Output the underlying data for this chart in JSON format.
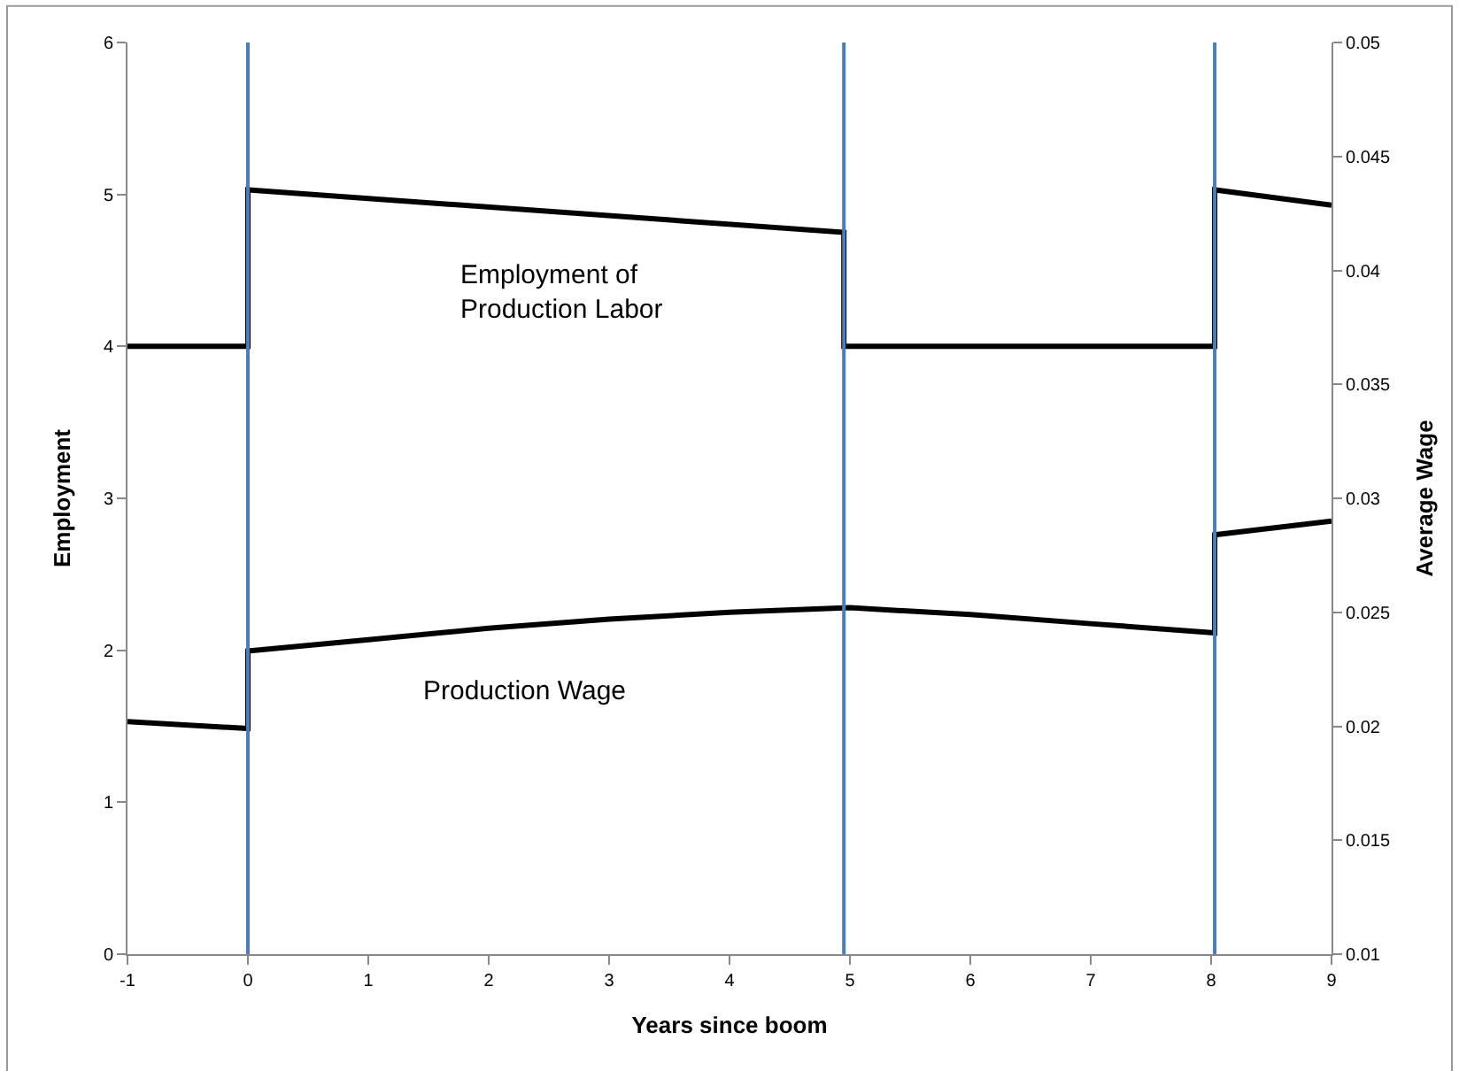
{
  "chart_data": {
    "type": "line",
    "xlabel": "Years since boom",
    "ylabel": "Employment",
    "y2label": "Average Wage",
    "xlim": [
      -1,
      9
    ],
    "xticks": [
      -1,
      0,
      1,
      2,
      3,
      4,
      5,
      6,
      7,
      8,
      9
    ],
    "ylim": [
      0,
      6
    ],
    "yticks": [
      0,
      1,
      2,
      3,
      4,
      5,
      6
    ],
    "y2lim": [
      0.01,
      0.05
    ],
    "y2ticks": [
      0.01,
      0.015,
      0.02,
      0.025,
      0.03,
      0.035,
      0.04,
      0.045,
      0.05
    ],
    "legend": false,
    "marker": "none",
    "line_style": "solid",
    "series": [
      {
        "name": "Employment of Production Labor",
        "color": "#000000",
        "x": [
          -1,
          0,
          0,
          4.95,
          4.95,
          8.03,
          8.03,
          9
        ],
        "values": [
          4,
          4,
          5.03,
          4.75,
          4,
          4,
          5.03,
          4.93
        ]
      },
      {
        "name": "Production Wage",
        "color": "#000000",
        "axis": "y2",
        "x": [
          -1,
          0,
          0,
          1,
          2,
          3,
          4,
          5,
          6,
          7,
          8.03,
          8.03,
          9
        ],
        "values": [
          0.0202,
          0.0199,
          0.0233,
          0.0238,
          0.0243,
          0.0247,
          0.025,
          0.0252,
          0.0249,
          0.0245,
          0.0241,
          0.0284,
          0.029
        ]
      }
    ],
    "ref_lines": [
      {
        "axis": "x",
        "value": 0,
        "color": "#4a7ebb"
      },
      {
        "axis": "x",
        "value": 4.95,
        "color": "#4a7ebb"
      },
      {
        "axis": "x",
        "value": 8.03,
        "color": "#4a7ebb"
      }
    ]
  }
}
